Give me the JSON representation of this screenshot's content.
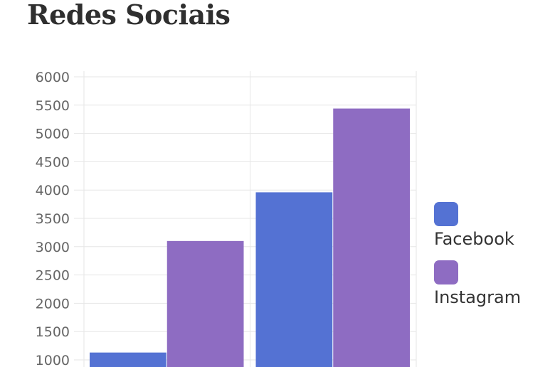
{
  "header": {
    "title": "Redes Sociais"
  },
  "chart_data": {
    "type": "bar",
    "title": "Redes Sociais",
    "categories": [
      "",
      ""
    ],
    "series": [
      {
        "name": "Facebook",
        "color": "#5472D3",
        "values": [
          1130,
          3960
        ]
      },
      {
        "name": "Instagram",
        "color": "#8E6CC2",
        "values": [
          3100,
          5440
        ]
      }
    ],
    "ylim": [
      1000,
      6000
    ],
    "yticks": [
      "6000",
      "5500",
      "5000",
      "4500",
      "4000",
      "3500",
      "3000",
      "2500",
      "2000",
      "1500",
      "1000"
    ],
    "grid": true,
    "legend_position": "right"
  }
}
